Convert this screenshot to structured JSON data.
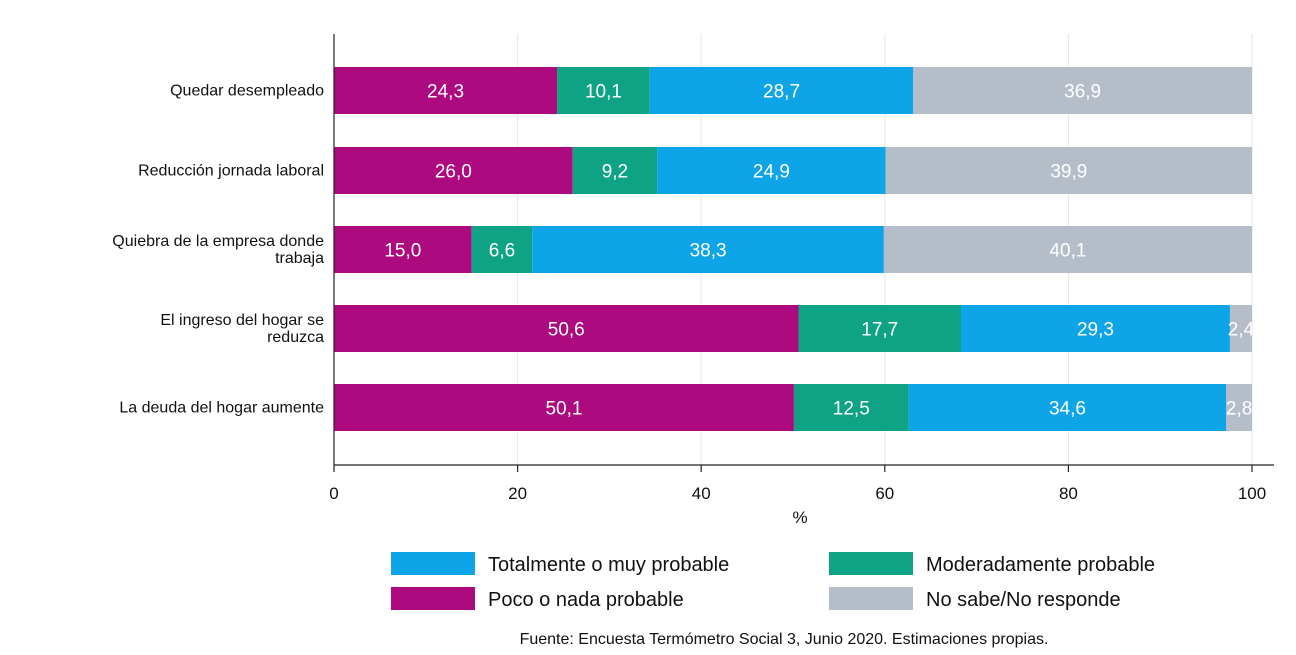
{
  "chart_data": {
    "type": "bar",
    "orientation": "horizontal",
    "stacked": true,
    "categories": [
      [
        "Quedar desempleado"
      ],
      [
        "Reducción jornada laboral"
      ],
      [
        "Quiebra de la empresa donde",
        "trabaja"
      ],
      [
        "El ingreso del hogar se",
        "reduzca"
      ],
      [
        "La deuda del hogar aumente"
      ]
    ],
    "series": [
      {
        "name": "Poco o nada probable",
        "color": "#ad0a80",
        "values": [
          24.3,
          26.0,
          15.0,
          50.6,
          50.1
        ],
        "labels": [
          "24,3",
          "26,0",
          "15,0",
          "50,6",
          "50,1"
        ]
      },
      {
        "name": "Moderadamente probable",
        "color": "#0ea384",
        "values": [
          10.1,
          9.2,
          6.6,
          17.7,
          12.5
        ],
        "labels": [
          "10,1",
          "9,2",
          "6,6",
          "17,7",
          "12,5"
        ]
      },
      {
        "name": "Totalmente o muy probable",
        "color": "#0ea5e8",
        "values": [
          28.7,
          24.9,
          38.3,
          29.3,
          34.6
        ],
        "labels": [
          "28,7",
          "24,9",
          "38,3",
          "29,3",
          "34,6"
        ]
      },
      {
        "name": "No sabe/No responde",
        "color": "#b5bec8",
        "values": [
          36.9,
          39.9,
          40.1,
          2.4,
          2.8
        ],
        "labels": [
          "36,9",
          "39,9",
          "40,1",
          "2,4",
          "2,8"
        ]
      }
    ],
    "xlabel": "%",
    "xlim": [
      0,
      100
    ],
    "xticks": [
      0,
      20,
      40,
      60,
      80,
      100
    ],
    "xtick_labels": [
      "0",
      "20",
      "40",
      "60",
      "80",
      "100"
    ],
    "grid": true,
    "legend": {
      "placement": "bottom",
      "order": [
        "Totalmente o muy probable",
        "Moderadamente probable",
        "Poco o nada probable",
        "No sabe/No responde"
      ]
    }
  },
  "source_note": "Fuente: Encuesta Termómetro Social 3, Junio 2020. Estimaciones propias."
}
